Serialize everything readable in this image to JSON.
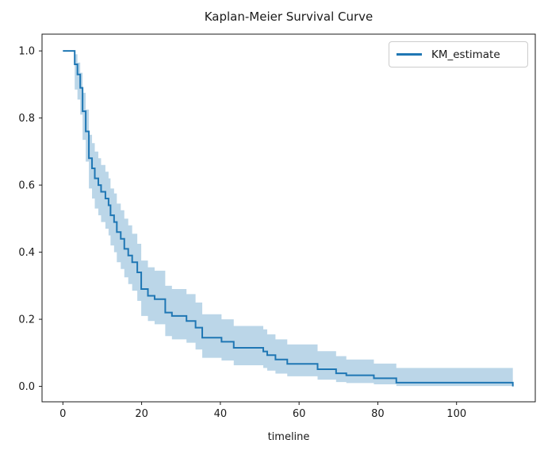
{
  "figure": {
    "title": "Kaplan-Meier Survival Curve",
    "xlabel": "timeline",
    "legend": {
      "position": "upper right",
      "entries": [
        {
          "label": "KM_estimate",
          "color": "#1f77b4"
        }
      ]
    },
    "colors": {
      "line": "#1f77b4",
      "band_fill": "#1f77b4",
      "band_alpha": 0.3,
      "spine": "#1a1a1a",
      "tick_text": "#1a1a1a",
      "background": "#ffffff",
      "legend_border": "#cccccc"
    }
  },
  "chart_data": {
    "type": "line",
    "subtype": "step-post-survival",
    "title": "Kaplan-Meier Survival Curve",
    "xlabel": "timeline",
    "ylabel": "",
    "grid": false,
    "legend_entries": [
      "KM_estimate"
    ],
    "legend_position": "upper right",
    "xlim": [
      -5.3,
      120
    ],
    "ylim": [
      -0.046,
      1.05
    ],
    "xticks": [
      {
        "v": 0,
        "label": "0"
      },
      {
        "v": 20,
        "label": "20"
      },
      {
        "v": 40,
        "label": "40"
      },
      {
        "v": 60,
        "label": "60"
      },
      {
        "v": 80,
        "label": "80"
      },
      {
        "v": 100,
        "label": "100"
      }
    ],
    "yticks": [
      {
        "v": 0.0,
        "label": "0.0"
      },
      {
        "v": 0.2,
        "label": "0.2"
      },
      {
        "v": 0.4,
        "label": "0.4"
      },
      {
        "v": 0.6,
        "label": "0.6"
      },
      {
        "v": 0.8,
        "label": "0.8"
      },
      {
        "v": 1.0,
        "label": "1.0"
      }
    ],
    "series": [
      {
        "name": "KM_estimate",
        "color": "#1f77b4",
        "has_confidence_band": true,
        "x": [
          0,
          3,
          3.7,
          4.4,
          5,
          5.8,
          6.6,
          7.4,
          8.1,
          9,
          9.7,
          10.8,
          11.6,
          12.1,
          13,
          13.7,
          14.7,
          15.6,
          16.6,
          17.6,
          18.9,
          19.9,
          21.6,
          23.3,
          26,
          27.7,
          31.4,
          33.7,
          35.4,
          40.3,
          43.4,
          50.9,
          51.9,
          54,
          57,
          64.7,
          69.4,
          72,
          79,
          84.7,
          114.3
        ],
        "y": [
          1.0,
          0.96,
          0.93,
          0.89,
          0.82,
          0.76,
          0.68,
          0.65,
          0.62,
          0.6,
          0.58,
          0.56,
          0.54,
          0.51,
          0.49,
          0.46,
          0.44,
          0.41,
          0.39,
          0.37,
          0.34,
          0.29,
          0.27,
          0.26,
          0.22,
          0.21,
          0.195,
          0.175,
          0.145,
          0.133,
          0.115,
          0.104,
          0.093,
          0.08,
          0.067,
          0.051,
          0.039,
          0.033,
          0.024,
          0.011,
          0.0
        ],
        "ci_lower": [
          1.0,
          0.885,
          0.855,
          0.81,
          0.735,
          0.67,
          0.59,
          0.56,
          0.53,
          0.51,
          0.49,
          0.47,
          0.45,
          0.42,
          0.4,
          0.37,
          0.35,
          0.325,
          0.305,
          0.285,
          0.255,
          0.21,
          0.195,
          0.185,
          0.15,
          0.14,
          0.13,
          0.11,
          0.085,
          0.077,
          0.063,
          0.055,
          0.047,
          0.038,
          0.03,
          0.02,
          0.013,
          0.01,
          0.006,
          0.001,
          0.001
        ],
        "ci_upper": [
          1.0,
          0.99,
          0.965,
          0.935,
          0.875,
          0.825,
          0.75,
          0.725,
          0.7,
          0.68,
          0.66,
          0.64,
          0.62,
          0.59,
          0.575,
          0.545,
          0.525,
          0.5,
          0.48,
          0.455,
          0.425,
          0.375,
          0.355,
          0.345,
          0.3,
          0.29,
          0.275,
          0.25,
          0.215,
          0.2,
          0.18,
          0.17,
          0.155,
          0.14,
          0.125,
          0.105,
          0.09,
          0.08,
          0.068,
          0.055,
          0.055
        ]
      }
    ]
  }
}
